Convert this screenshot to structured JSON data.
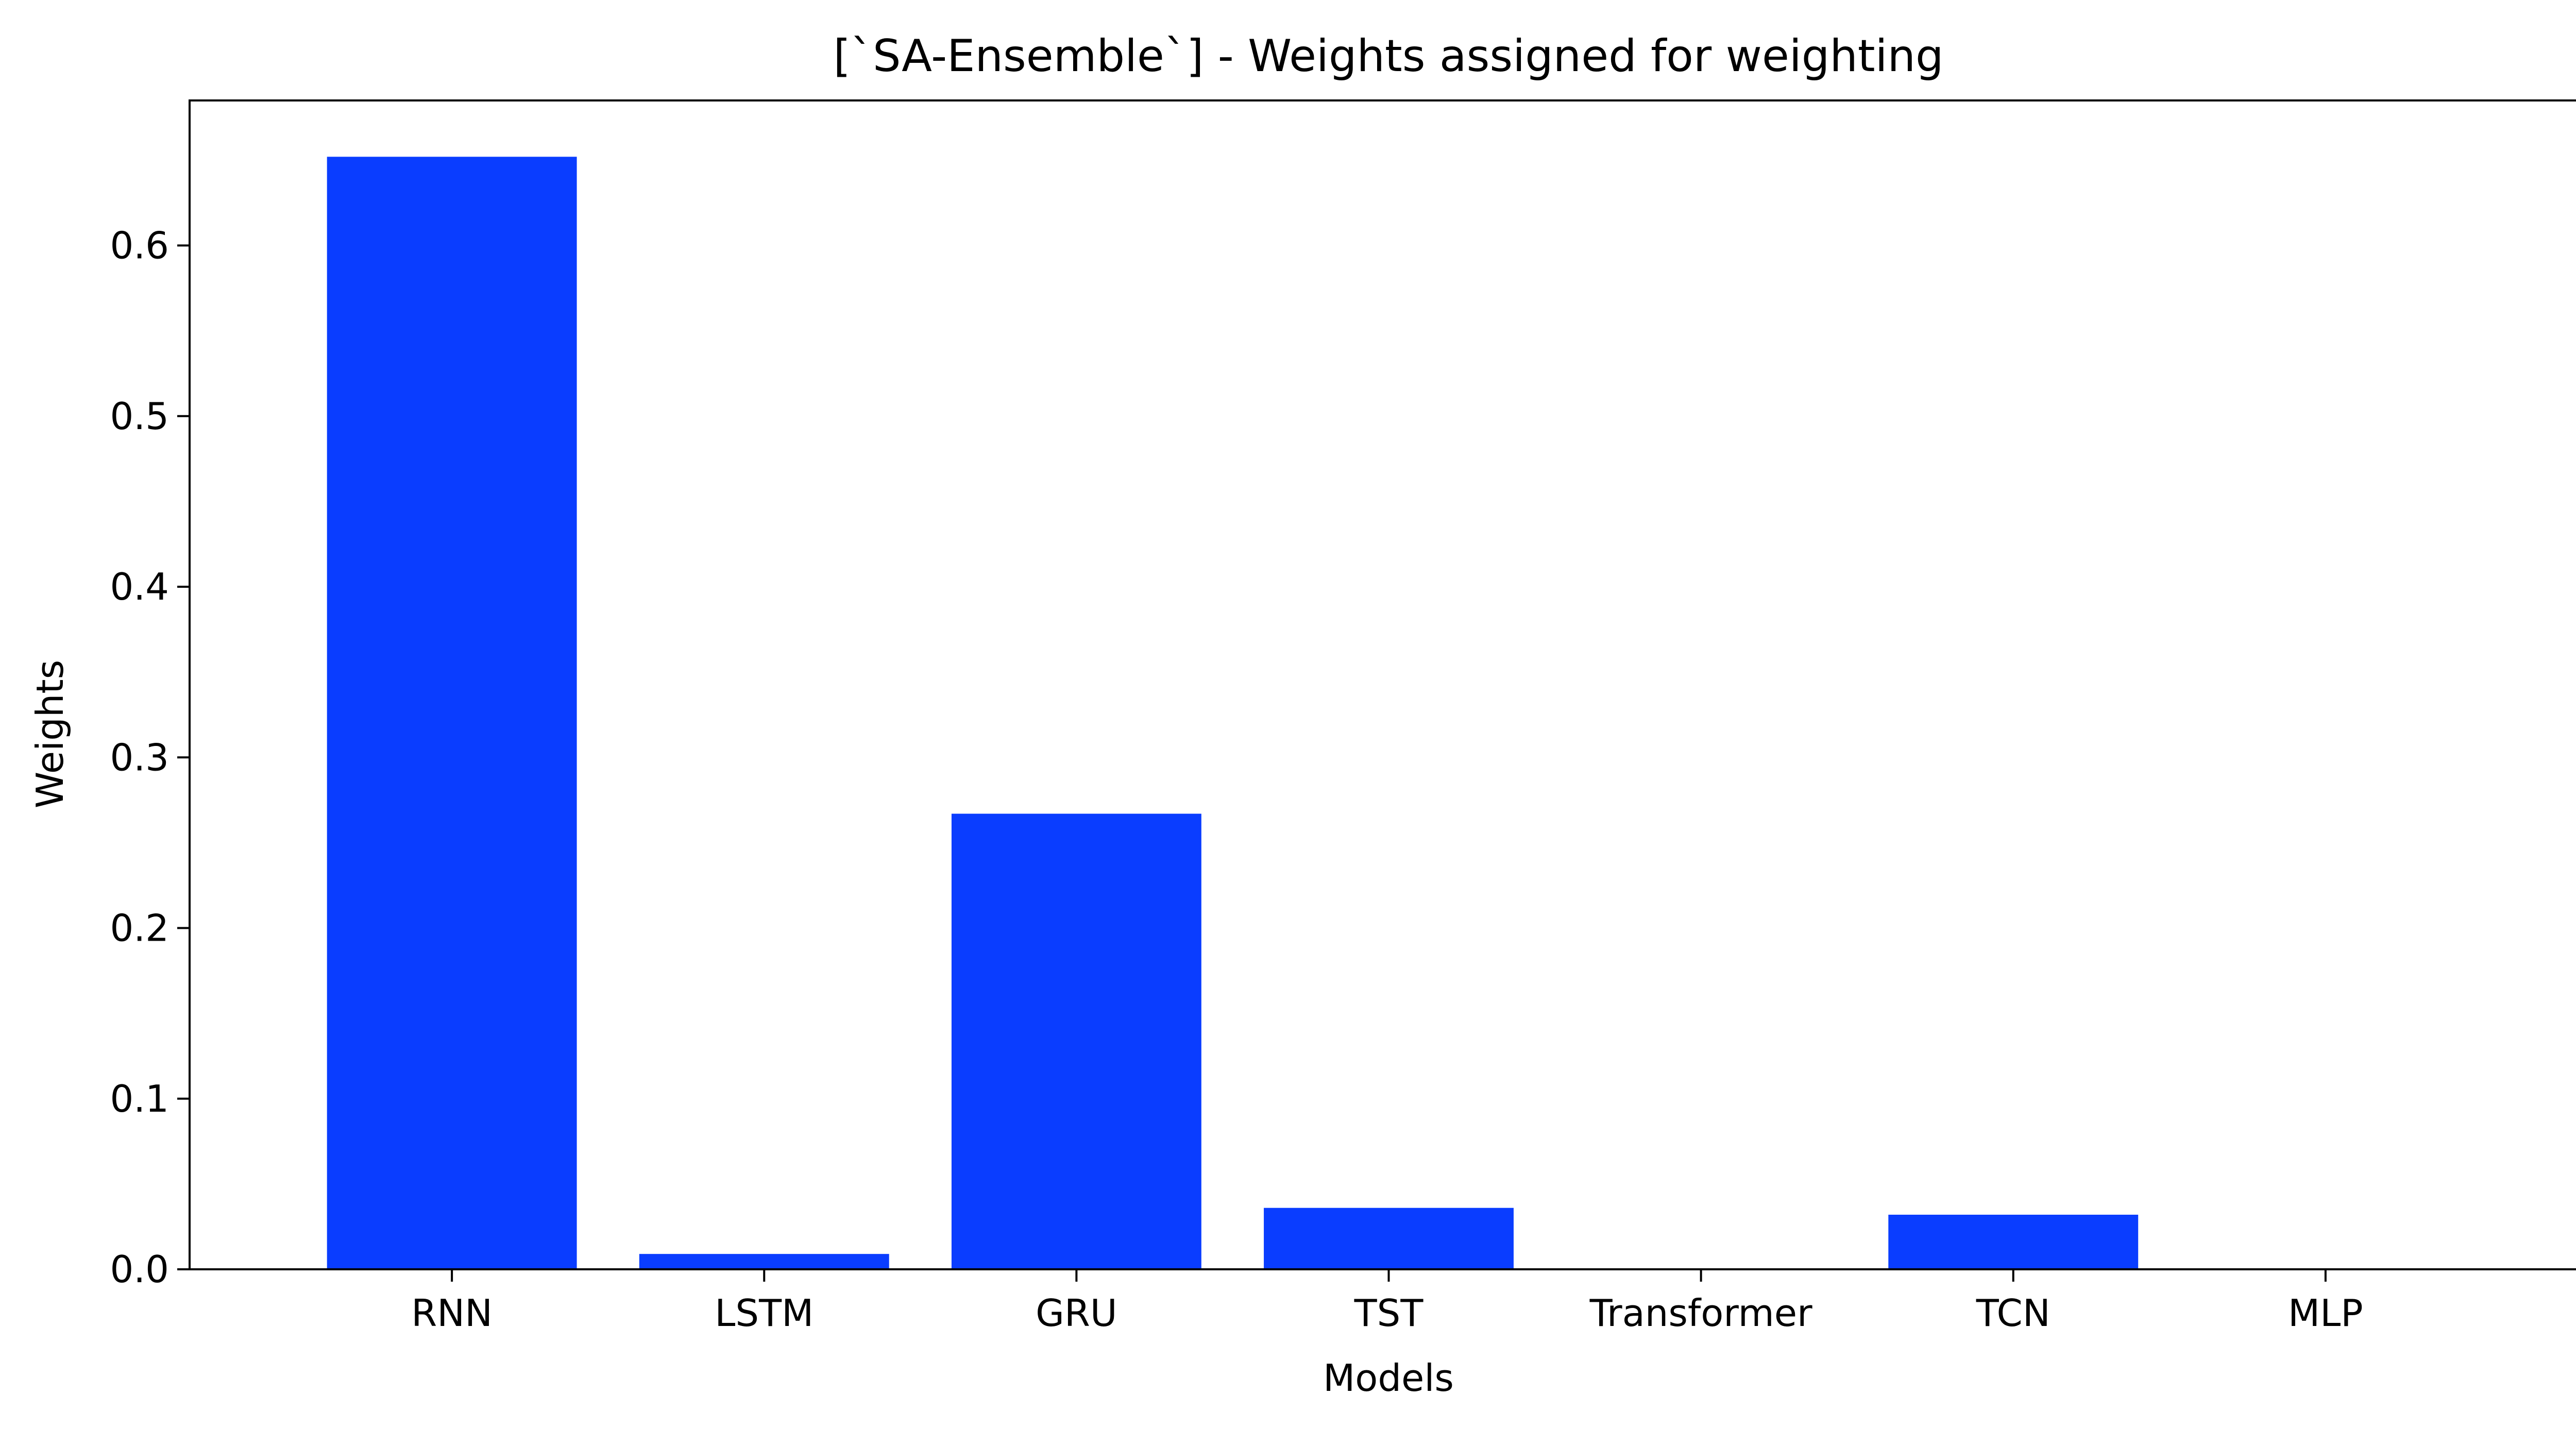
{
  "chart_data": {
    "type": "bar",
    "title": "[`SA-Ensemble`] - Weights assigned for weighting",
    "xlabel": "Models",
    "ylabel": "Weights",
    "categories": [
      "RNN",
      "LSTM",
      "GRU",
      "TST",
      "Transformer",
      "TCN",
      "MLP"
    ],
    "values": [
      0.652,
      0.009,
      0.267,
      0.036,
      0.0,
      0.032,
      0.0
    ],
    "ylim": [
      0,
      0.685
    ],
    "yticks": [
      0.0,
      0.1,
      0.2,
      0.3,
      0.4,
      0.5,
      0.6
    ],
    "ytick_labels": [
      "0.0",
      "0.1",
      "0.2",
      "0.3",
      "0.4",
      "0.5",
      "0.6"
    ],
    "grid": false,
    "legend": "none",
    "colors": {
      "bar": "#0a3dff",
      "axis": "#000000",
      "background": "#ffffff"
    }
  }
}
